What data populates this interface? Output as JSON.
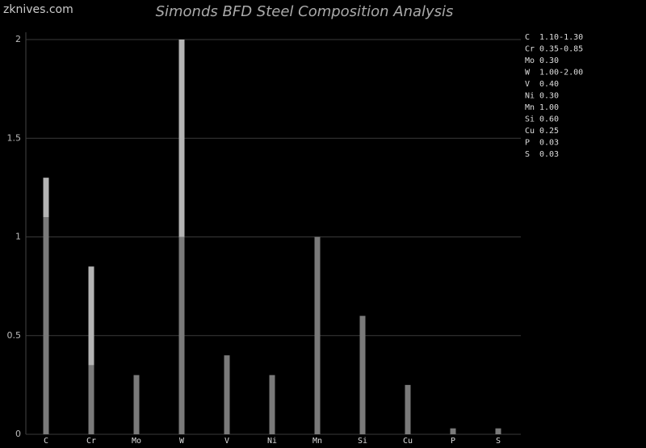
{
  "chart_data": {
    "type": "bar",
    "stacked": true,
    "title": "Simonds BFD Steel Composition Analysis",
    "watermark": "zknives.com",
    "categories": [
      "C",
      "Cr",
      "Mo",
      "W",
      "V",
      "Ni",
      "Mn",
      "Si",
      "Cu",
      "P",
      "S"
    ],
    "series": [
      {
        "color": "#7a7a7a",
        "values": [
          1.1,
          0.35,
          0.3,
          1.0,
          0.4,
          0.3,
          1.0,
          0.6,
          0.25,
          0.03,
          0.03
        ],
        "value_labels": [
          "1.10-1.30",
          "0.35-0.85",
          "0.30",
          "1.00-2.00",
          "0.40",
          "0.30",
          "1.00",
          "0.60",
          "0.25",
          "0.03",
          "0.03"
        ]
      },
      {
        "color": "#b4b4b4",
        "values": [
          0.2,
          0.5,
          0,
          1.0,
          0,
          0,
          0,
          0,
          0,
          0,
          0
        ]
      }
    ],
    "ylim": [
      0,
      2
    ],
    "yticks": [
      0,
      0.5,
      1,
      1.5,
      2
    ],
    "grid": true
  }
}
